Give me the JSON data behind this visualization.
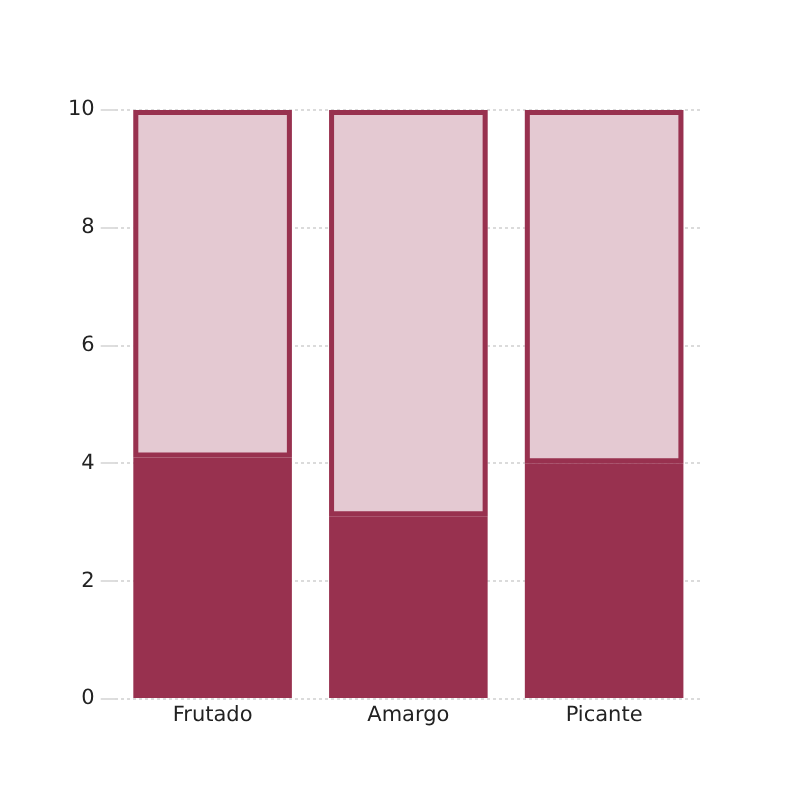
{
  "chart_data": {
    "type": "bar",
    "categories": [
      "Frutado",
      "Amargo",
      "Picante"
    ],
    "series": [
      {
        "color": "#98314f",
        "values": [
          4.1,
          3.1,
          4.0
        ]
      },
      {
        "color": "#e4c9d2",
        "values": [
          5.9,
          6.9,
          6.0
        ]
      }
    ],
    "stacked": true,
    "ylim": [
      0,
      10
    ],
    "yticks": [
      0,
      2,
      4,
      6,
      8,
      10
    ],
    "grid": "y"
  }
}
